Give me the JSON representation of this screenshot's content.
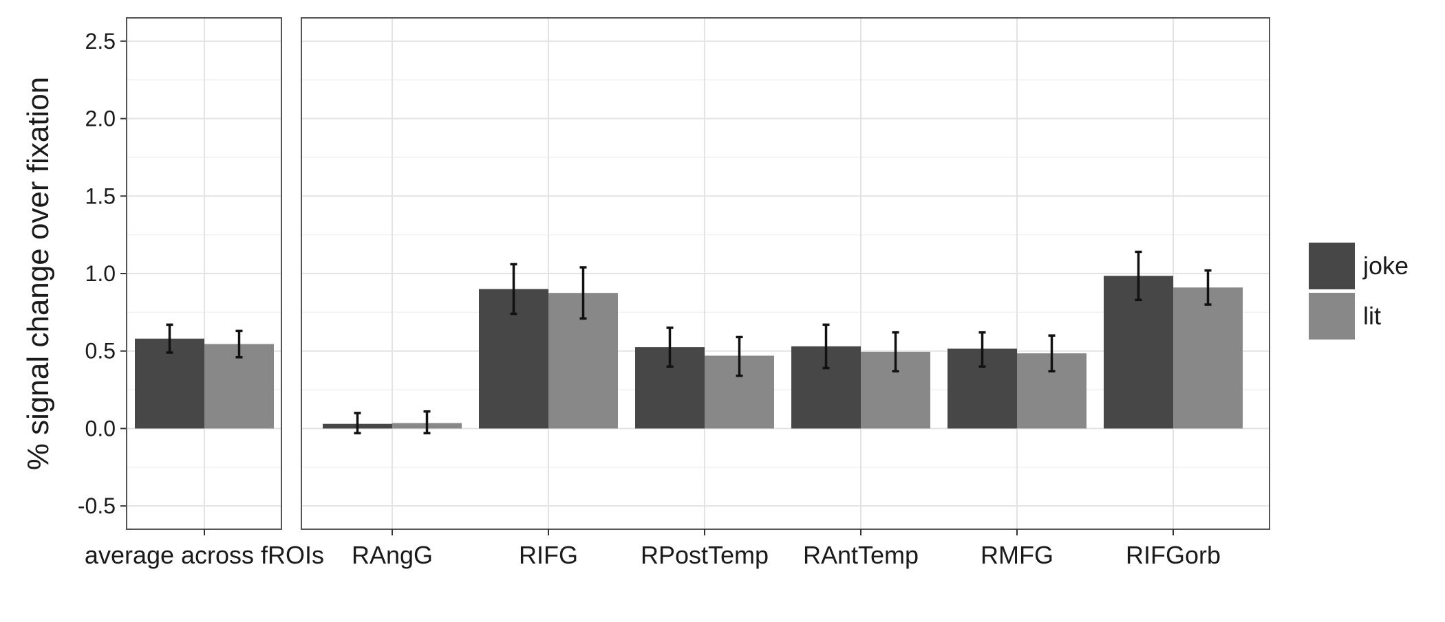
{
  "chart_data": {
    "type": "bar",
    "ylabel": "% signal change over fixation",
    "xlabel": "",
    "ylim": [
      -0.65,
      2.65
    ],
    "yticks": [
      -0.5,
      0.0,
      0.5,
      1.0,
      1.5,
      2.0,
      2.5
    ],
    "ytick_labels": [
      "-0.5",
      "0.0",
      "0.5",
      "1.0",
      "1.5",
      "2.0",
      "2.5"
    ],
    "grid": true,
    "legend_position": "right",
    "series": [
      {
        "name": "joke",
        "color": "#474747"
      },
      {
        "name": "lit",
        "color": "#888888"
      }
    ],
    "panels": [
      {
        "categories": [
          "average across fROIs"
        ],
        "values": {
          "joke": [
            0.58
          ],
          "lit": [
            0.545
          ]
        },
        "errors": {
          "joke": [
            [
              0.49,
              0.67
            ]
          ],
          "lit": [
            [
              0.46,
              0.63
            ]
          ]
        }
      },
      {
        "categories": [
          "RAngG",
          "RIFG",
          "RPostTemp",
          "RAntTemp",
          "RMFG",
          "RIFGorb"
        ],
        "values": {
          "joke": [
            0.03,
            0.9,
            0.525,
            0.53,
            0.515,
            0.985
          ],
          "lit": [
            0.035,
            0.875,
            0.47,
            0.495,
            0.485,
            0.91
          ]
        },
        "errors": {
          "joke": [
            [
              -0.03,
              0.1
            ],
            [
              0.74,
              1.06
            ],
            [
              0.4,
              0.65
            ],
            [
              0.39,
              0.67
            ],
            [
              0.4,
              0.62
            ],
            [
              0.83,
              1.14
            ]
          ],
          "lit": [
            [
              -0.03,
              0.11
            ],
            [
              0.71,
              1.04
            ],
            [
              0.34,
              0.59
            ],
            [
              0.37,
              0.62
            ],
            [
              0.37,
              0.6
            ],
            [
              0.8,
              1.02
            ]
          ]
        }
      }
    ]
  }
}
